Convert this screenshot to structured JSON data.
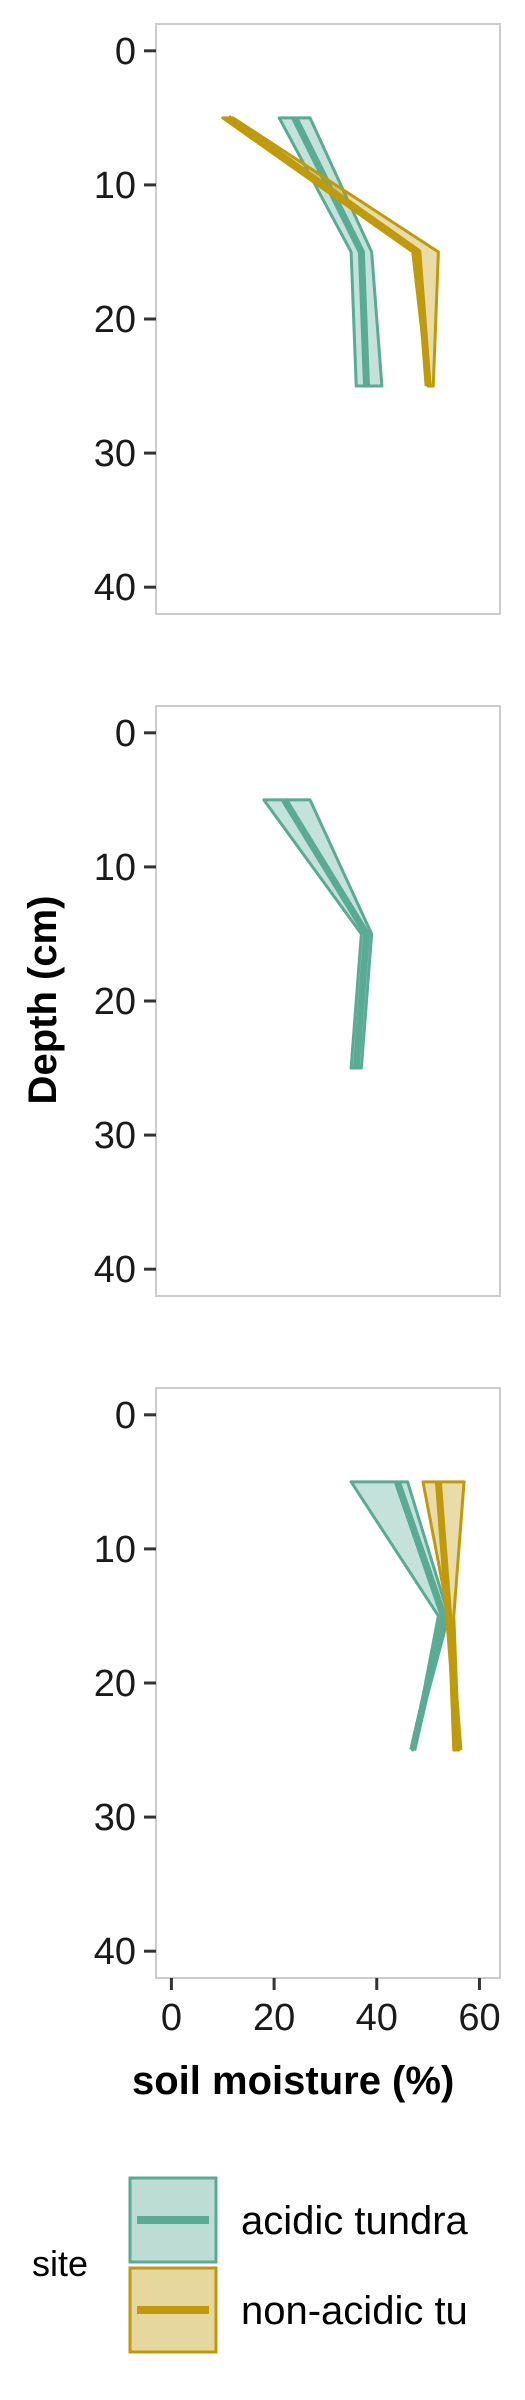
{
  "chart_data": {
    "type": "line",
    "xlabel": "soil moisture (%)",
    "ylabel": "Depth (cm)",
    "xlim": [
      -3,
      64
    ],
    "ylim": [
      42,
      -2
    ],
    "x_ticks": [
      "0",
      "20",
      "40",
      "60"
    ],
    "y_ticks": [
      "0",
      "10",
      "20",
      "30",
      "40"
    ],
    "grid": false,
    "colors": {
      "acidic tundra": "#5aab94",
      "non-acidic tundra": "#bf9a0a"
    },
    "legend": {
      "title": "site",
      "position": "bottom",
      "entries": [
        "acidic tundra",
        "non-acidic tu"
      ]
    },
    "panels": [
      {
        "series": [
          {
            "site": "acidic tundra",
            "depth": [
              5,
              15,
              25
            ],
            "mean": [
              24,
              37,
              38
            ],
            "lower": [
              21,
              35,
              36
            ],
            "upper": [
              27,
              39,
              41
            ]
          },
          {
            "site": "non-acidic tundra",
            "depth": [
              5,
              15,
              25
            ],
            "mean": [
              11,
              48,
              50
            ],
            "lower": [
              10,
              47,
              50
            ],
            "upper": [
              12,
              52,
              51
            ]
          }
        ]
      },
      {
        "series": [
          {
            "site": "acidic tundra",
            "depth": [
              5,
              15,
              25
            ],
            "mean": [
              22,
              38,
              36
            ],
            "lower": [
              18,
              37,
              35
            ],
            "upper": [
              27,
              39,
              37
            ]
          }
        ]
      },
      {
        "series": [
          {
            "site": "acidic tundra",
            "depth": [
              5,
              15,
              25
            ],
            "mean": [
              44,
              53,
              47
            ],
            "lower": [
              35,
              52,
              47
            ],
            "upper": [
              46,
              54,
              47
            ]
          },
          {
            "site": "non-acidic tundra",
            "depth": [
              5,
              15,
              25
            ],
            "mean": [
              52,
              54,
              56
            ],
            "lower": [
              49,
              54,
              55
            ],
            "upper": [
              57,
              55,
              56
            ]
          }
        ]
      }
    ]
  }
}
